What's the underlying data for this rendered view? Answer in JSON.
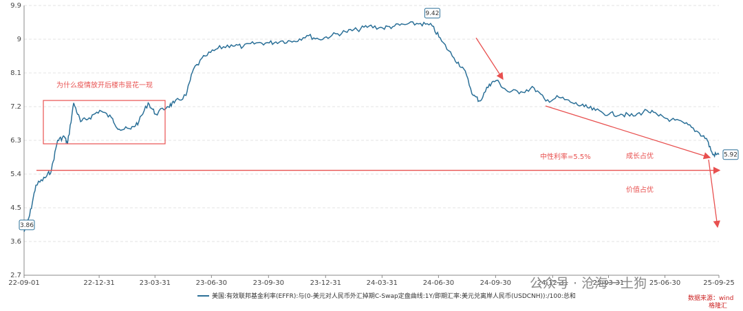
{
  "chart_data": {
    "type": "line",
    "title": "",
    "xlabel": "",
    "ylabel": "",
    "ylim": [
      2.7,
      9.9
    ],
    "y_ticks": [
      "2.7",
      "3.6",
      "4.5",
      "5.4",
      "6.3",
      "7.2",
      "8.1",
      "9",
      "9.9"
    ],
    "x_ticks": [
      "22-09-01",
      "22-12-31",
      "23-03-31",
      "23-06-30",
      "23-09-30",
      "23-12-31",
      "24-03-31",
      "24-06-30",
      "24-09-30",
      "24-12-31",
      "25-03-31",
      "25-06-30",
      "25-09-25"
    ],
    "grid": true,
    "legend_position": "bottom",
    "series": [
      {
        "name": "美国:有效联邦基金利率(EFFR):与(0-美元对人民币外汇掉期C-Swap定盘曲线:1Y/即期汇率:美元兑离岸人民币(USDCNH)):/100:总和",
        "color": "#2a6f97",
        "x": [
          "2022-09-01",
          "2022-09-10",
          "2022-09-20",
          "2022-10-05",
          "2022-10-15",
          "2022-10-25",
          "2022-11-05",
          "2022-11-10",
          "2022-11-20",
          "2022-12-01",
          "2022-12-15",
          "2023-01-01",
          "2023-01-20",
          "2023-02-01",
          "2023-02-20",
          "2023-03-05",
          "2023-03-20",
          "2023-04-01",
          "2023-04-20",
          "2023-05-01",
          "2023-05-20",
          "2023-06-01",
          "2023-06-20",
          "2023-07-10",
          "2023-08-01",
          "2023-08-20",
          "2023-09-10",
          "2023-10-01",
          "2023-10-20",
          "2023-11-10",
          "2023-12-01",
          "2023-12-20",
          "2024-01-10",
          "2024-02-01",
          "2024-02-20",
          "2024-03-10",
          "2024-04-01",
          "2024-04-20",
          "2024-05-10",
          "2024-06-01",
          "2024-06-20",
          "2024-07-05",
          "2024-07-25",
          "2024-08-10",
          "2024-08-25",
          "2024-09-05",
          "2024-09-20",
          "2024-10-01",
          "2024-10-20",
          "2024-11-10",
          "2024-12-01",
          "2024-12-20",
          "2025-01-10",
          "2025-02-01",
          "2025-02-20",
          "2025-03-10",
          "2025-04-01",
          "2025-04-20",
          "2025-05-10",
          "2025-06-01",
          "2025-06-20",
          "2025-07-10",
          "2025-08-01",
          "2025-08-20",
          "2025-09-05",
          "2025-09-15",
          "2025-09-25"
        ],
        "y": [
          3.86,
          4.3,
          5.1,
          5.3,
          5.5,
          6.3,
          6.4,
          6.2,
          7.3,
          6.8,
          6.9,
          7.1,
          6.9,
          6.6,
          6.6,
          6.8,
          7.3,
          7.0,
          7.2,
          7.3,
          7.5,
          8.2,
          8.55,
          8.75,
          8.85,
          8.8,
          8.9,
          8.9,
          8.95,
          8.95,
          9.1,
          9.0,
          9.1,
          9.2,
          9.25,
          9.35,
          9.3,
          9.35,
          9.4,
          9.42,
          9.35,
          8.95,
          8.5,
          8.2,
          7.5,
          7.35,
          7.8,
          7.9,
          7.6,
          7.6,
          7.7,
          7.35,
          7.45,
          7.3,
          7.2,
          7.1,
          7.0,
          7.0,
          6.95,
          7.1,
          6.95,
          6.85,
          6.75,
          6.55,
          6.35,
          5.92,
          5.92
        ]
      }
    ],
    "annotations": [
      {
        "text": "为什么疫情放开后楼市昙花一现"
      },
      {
        "text": "中性利率=5.5%",
        "y": 5.5
      },
      {
        "text": "成长占优"
      },
      {
        "text": "价值占优"
      },
      {
        "text": "9.42",
        "x": "2024-06-20",
        "y": 9.42
      },
      {
        "text": "3.86",
        "x": "2022-09-01",
        "y": 3.86
      },
      {
        "text": "5.92",
        "x": "2025-09-25",
        "y": 5.92
      }
    ],
    "watermark": "公众号 · 沧海一土狗",
    "source": "数据来源：wind",
    "corner_logo": "格隆汇"
  }
}
